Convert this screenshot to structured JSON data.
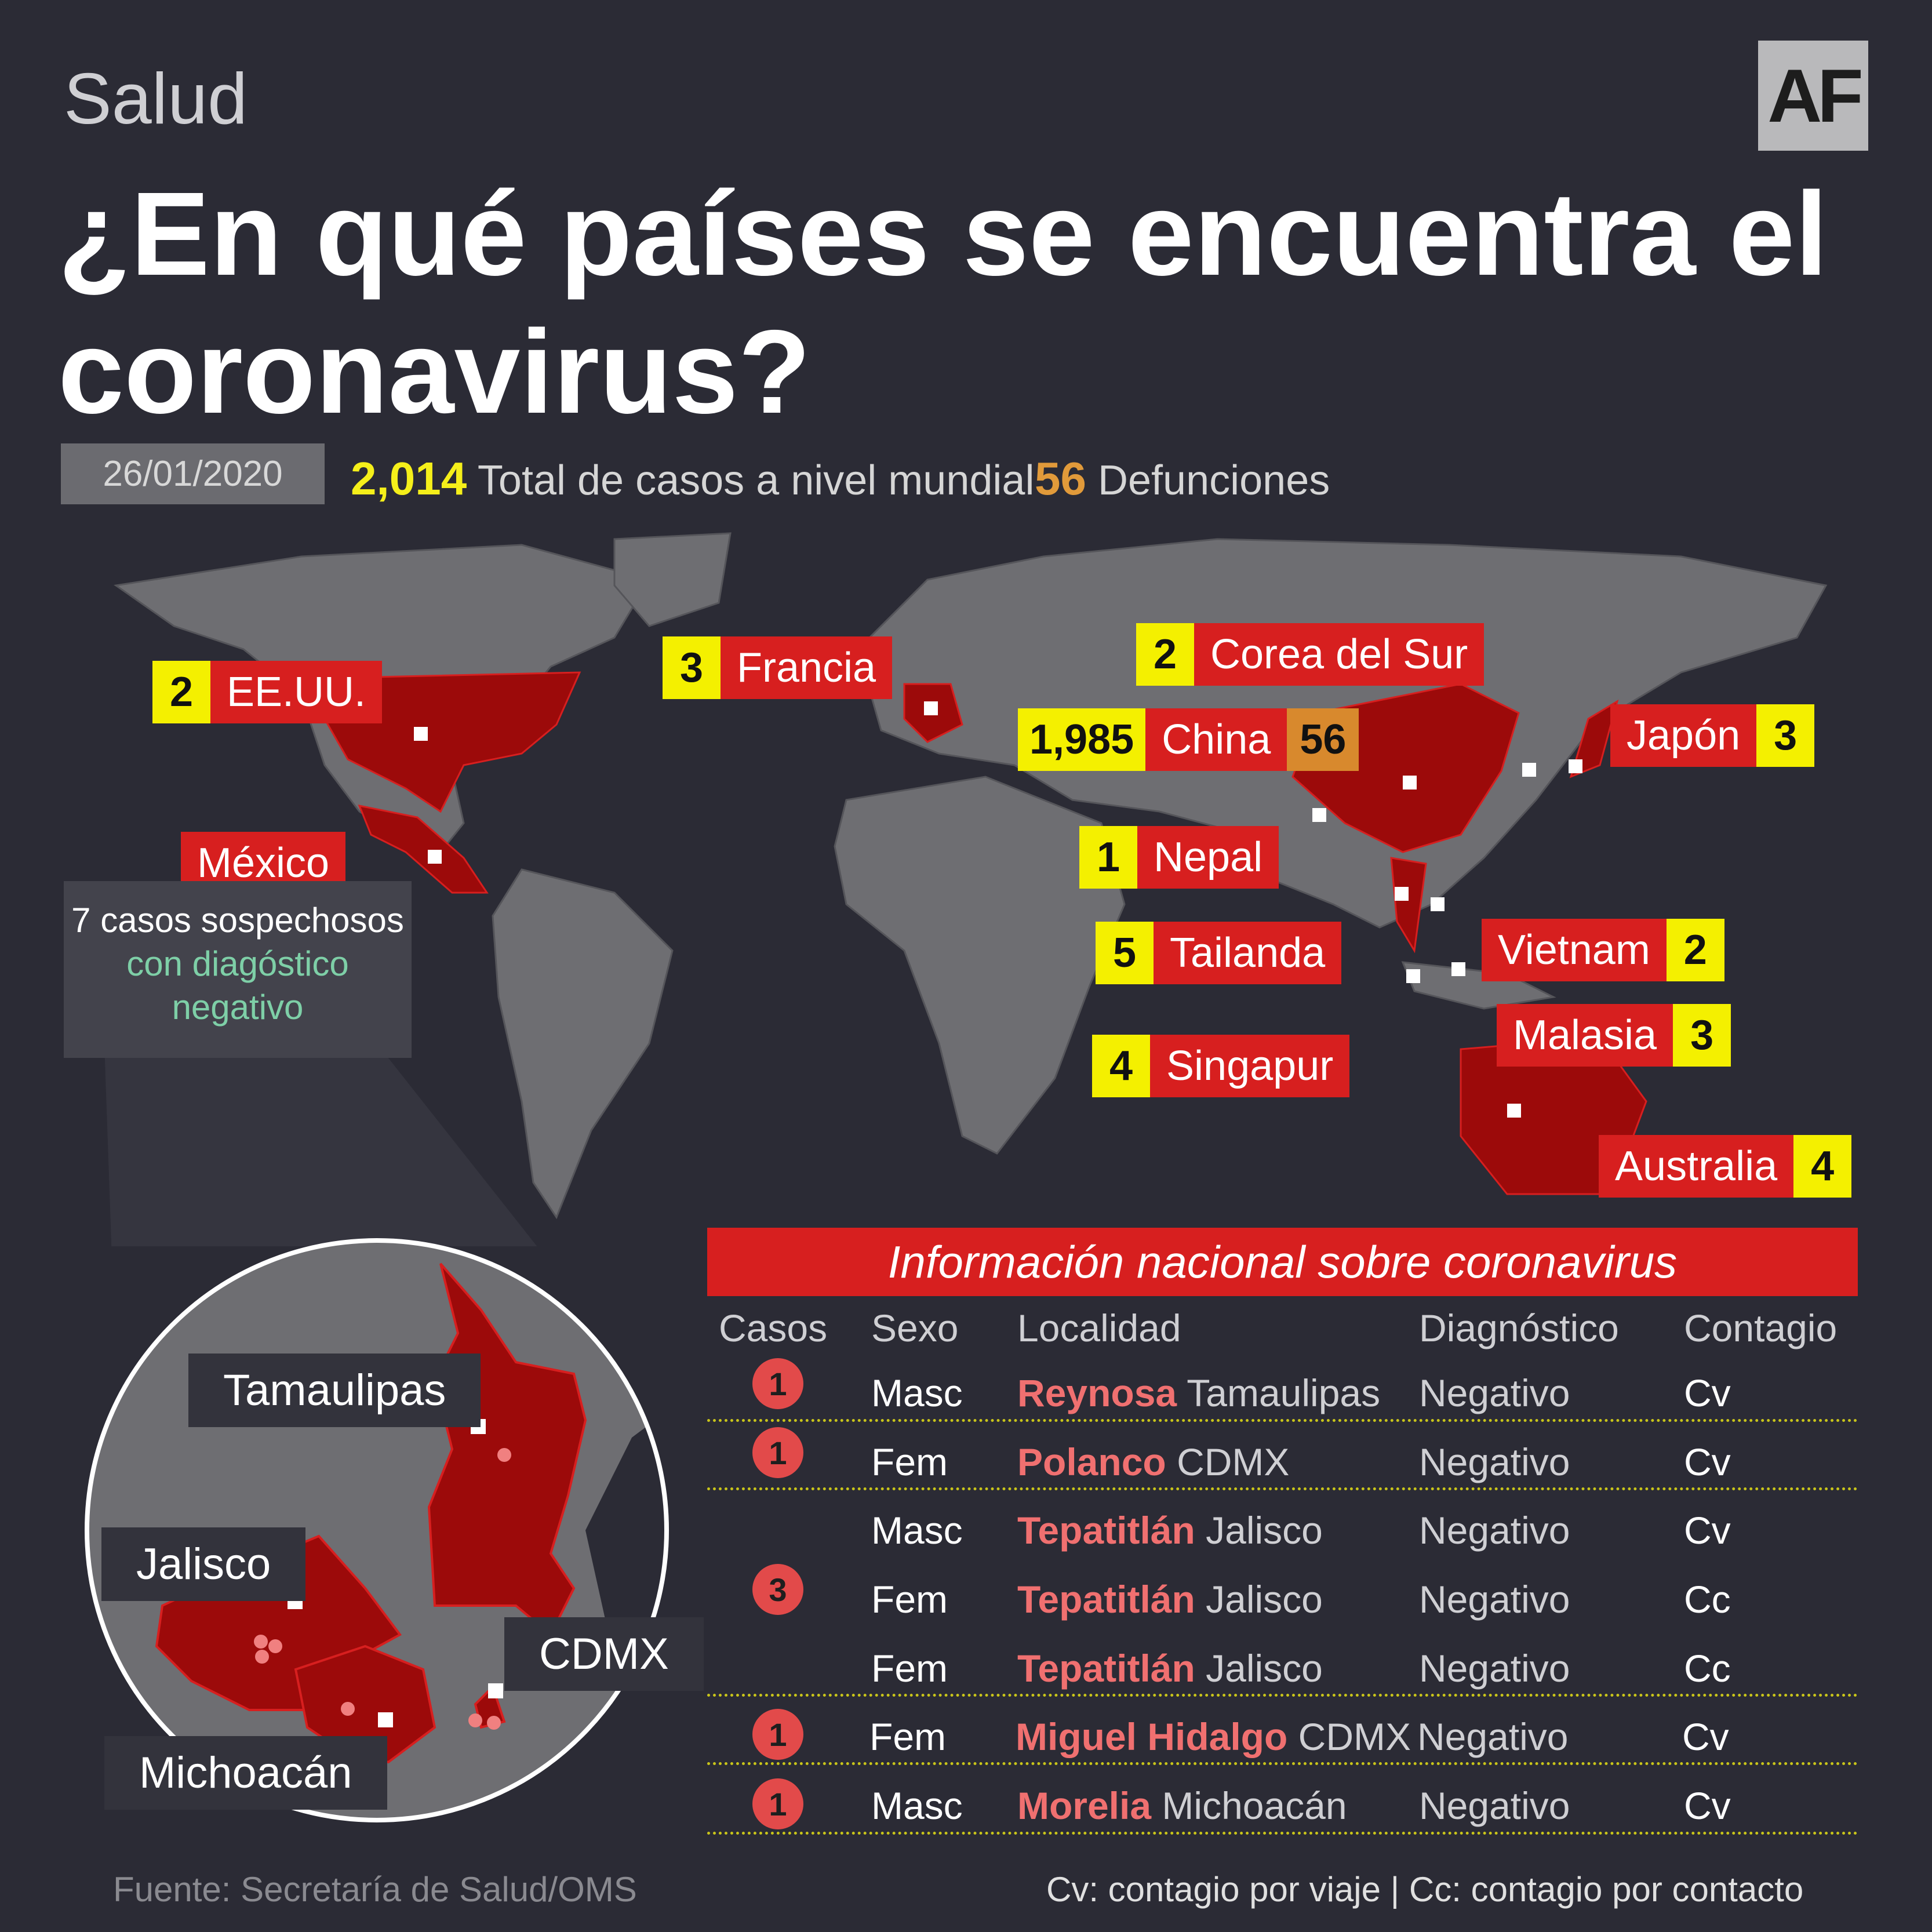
{
  "header": {
    "section": "Salud",
    "logo": "AF",
    "title": "¿En qué países se encuentra el coronavirus?",
    "date": "26/01/2020",
    "total_cases": "2,014",
    "total_cases_label": "Total de casos a nivel mundial",
    "deaths": "56",
    "deaths_label": "Defunciones"
  },
  "countries": {
    "usa": {
      "count": "2",
      "name": "EE.UU."
    },
    "france": {
      "count": "3",
      "name": "Francia"
    },
    "korea": {
      "count": "2",
      "name": "Corea del Sur"
    },
    "china": {
      "count": "1,985",
      "name": "China",
      "deaths": "56"
    },
    "japan": {
      "count": "3",
      "name": "Japón"
    },
    "nepal": {
      "count": "1",
      "name": "Nepal"
    },
    "thailand": {
      "count": "5",
      "name": "Tailanda"
    },
    "vietnam": {
      "count": "2",
      "name": "Vietnam"
    },
    "singapore": {
      "count": "4",
      "name": "Singapur"
    },
    "malaysia": {
      "count": "3",
      "name": "Malasia"
    },
    "australia": {
      "count": "4",
      "name": "Australia"
    },
    "mexico": {
      "name": "México",
      "note1": "7 casos sospechosos",
      "note2": "con diagóstico",
      "note3": "negativo"
    }
  },
  "zoom": {
    "tamaulipas": "Tamaulipas",
    "jalisco": "Jalisco",
    "cdmx": "CDMX",
    "michoacan": "Michoacán"
  },
  "table": {
    "title": "Información nacional sobre coronavirus",
    "columns": [
      "Casos",
      "Sexo",
      "Localidad",
      "Diagnóstico",
      "Contagio"
    ],
    "groups": [
      {
        "cases": "1"
      },
      {
        "cases": "1"
      },
      {
        "cases": "3"
      },
      {
        "cases": "1"
      },
      {
        "cases": "1"
      }
    ],
    "rows": [
      {
        "sex": "Masc",
        "city": "Reynosa",
        "state": "Tamaulipas",
        "diag": "Negativo",
        "contagio": "Cv"
      },
      {
        "sex": "Fem",
        "city": "Polanco",
        "state": "CDMX",
        "diag": "Negativo",
        "contagio": "Cv"
      },
      {
        "sex": "Masc",
        "city": "Tepatitlán",
        "state": "Jalisco",
        "diag": "Negativo",
        "contagio": "Cv"
      },
      {
        "sex": "Fem",
        "city": "Tepatitlán",
        "state": "Jalisco",
        "diag": "Negativo",
        "contagio": "Cc"
      },
      {
        "sex": "Fem",
        "city": "Tepatitlán",
        "state": "Jalisco",
        "diag": "Negativo",
        "contagio": "Cc"
      },
      {
        "sex": "Fem",
        "city": "Miguel Hidalgo",
        "state": "CDMX",
        "diag": "Negativo",
        "contagio": "Cv"
      },
      {
        "sex": "Masc",
        "city": "Morelia",
        "state": "Michoacán",
        "diag": "Negativo",
        "contagio": "Cv"
      }
    ]
  },
  "footer": {
    "source": "Fuente: Secretaría de Salud/OMS",
    "legend": "Cv: contagio por viaje | Cc: contagio por contacto"
  },
  "colors": {
    "background": "#2b2b35",
    "land": "#6e6e72",
    "highlight": "#9c0a0a",
    "label_red": "#d71f1f",
    "count_yellow": "#f4f000",
    "deaths_orange": "#d8892d"
  }
}
